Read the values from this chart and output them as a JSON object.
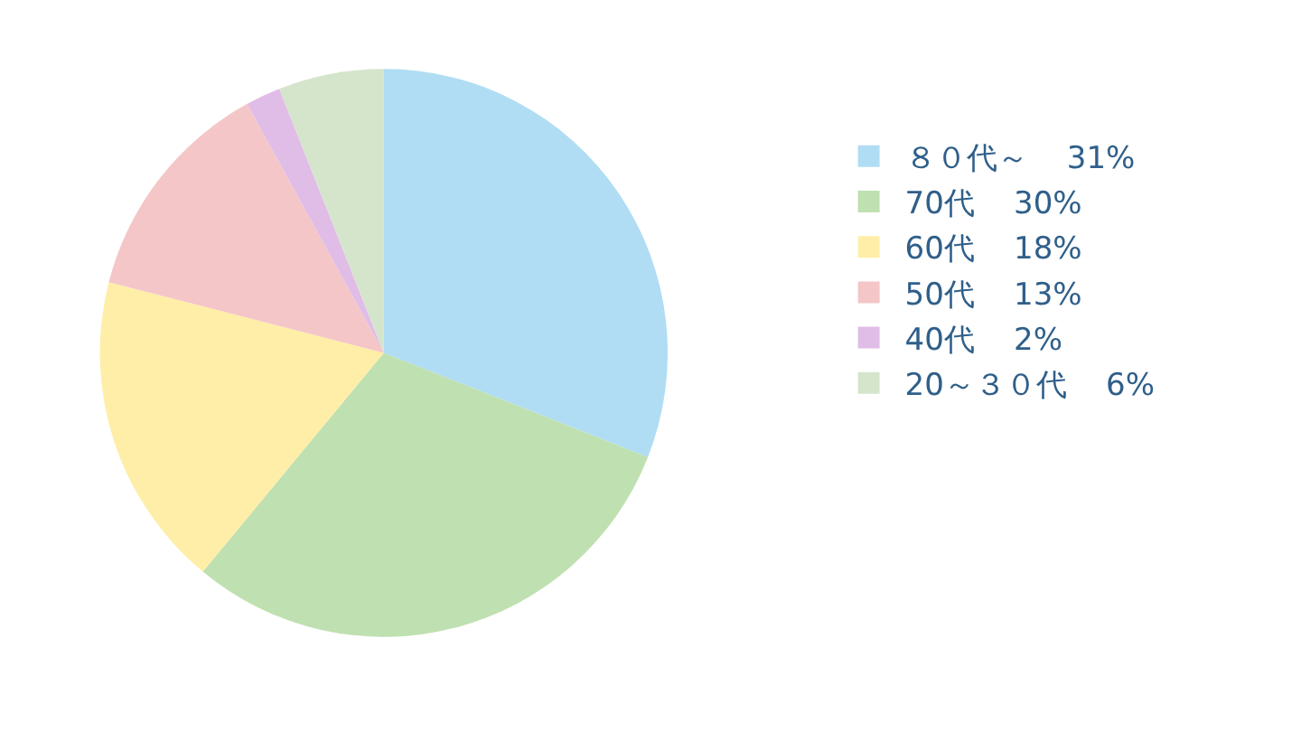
{
  "chart_data": {
    "type": "pie",
    "categories": [
      "８０代～",
      "70代",
      "60代",
      "50代",
      "40代",
      "20～３０代"
    ],
    "values": [
      31,
      30,
      18,
      13,
      2,
      6
    ],
    "value_labels": [
      "31%",
      "30%",
      "18%",
      "13%",
      "2%",
      "6%"
    ],
    "colors": [
      "#b0ddf3",
      "#bfe0b0",
      "#ffeea8",
      "#f4c6c8",
      "#e0bde6",
      "#d5e5cc"
    ],
    "legend": "right"
  }
}
